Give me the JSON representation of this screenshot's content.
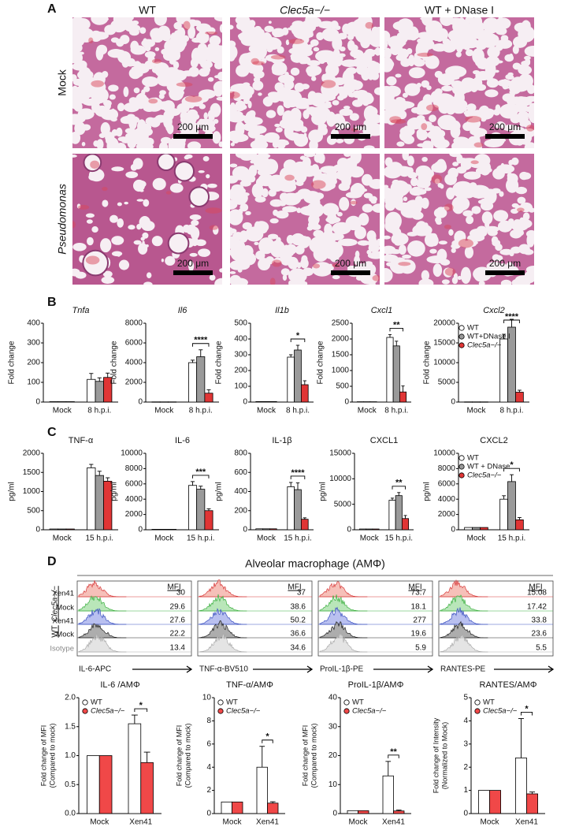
{
  "panel_labels": [
    "A",
    "B",
    "C",
    "D"
  ],
  "panel_a": {
    "columns": [
      "WT",
      "Clec5a−/−",
      "WT + DNase I"
    ],
    "rows": [
      "Mock",
      "Pseudomonas"
    ],
    "scale_bar": "200 μm"
  },
  "flow": {
    "title": "Alveolar macrophage (AMΦ)",
    "groups": [
      "Clec5a−/−",
      "WT"
    ],
    "row_labels": [
      "Xen41",
      "Mock",
      "Xen41",
      "Mock",
      "Isotype"
    ],
    "header": "MFI",
    "panels": [
      {
        "xlabel": "IL-6-APC",
        "mfi": [
          "30",
          "29.6",
          "27.6",
          "22.2",
          "13.4"
        ]
      },
      {
        "xlabel": "TNF-α-BV510",
        "mfi": [
          "37",
          "38.6",
          "50.2",
          "36.6",
          "34.6"
        ]
      },
      {
        "xlabel": "ProIL-1β-PE",
        "mfi": [
          "73.7",
          "18.1",
          "277",
          "19.6",
          "5.9"
        ]
      },
      {
        "xlabel": "RANTES-PE",
        "mfi": [
          "15.08",
          "17.42",
          "33.8",
          "23.6",
          "5.5"
        ]
      }
    ]
  },
  "chart_data": [
    {
      "type": "bar",
      "title": "Tnfa",
      "ylabel": [
        "Fold change"
      ],
      "categories": [
        "Mock",
        "8 h.p.i."
      ],
      "ylim": [
        0,
        400
      ],
      "yticks": [
        0,
        100,
        200,
        300,
        400
      ],
      "series": [
        {
          "color": "#ffffff",
          "values": [
            2,
            115
          ],
          "errors": [
            null,
            30
          ]
        },
        {
          "color": "#9a9a9a",
          "values": [
            2,
            105
          ],
          "errors": [
            null,
            18
          ]
        },
        {
          "color": "#e03535",
          "values": [
            2,
            125
          ],
          "errors": [
            null,
            22
          ]
        }
      ]
    },
    {
      "type": "bar",
      "title": "Il6",
      "ylabel": [
        "Fold change"
      ],
      "categories": [
        "Mock",
        "8 h.p.i."
      ],
      "ylim": [
        0,
        8000
      ],
      "yticks": [
        0,
        2000,
        4000,
        6000,
        8000
      ],
      "annotation": "****",
      "series": [
        {
          "color": "#ffffff",
          "values": [
            20,
            4000
          ],
          "errors": [
            null,
            250
          ]
        },
        {
          "color": "#9a9a9a",
          "values": [
            20,
            4600
          ],
          "errors": [
            null,
            700
          ]
        },
        {
          "color": "#e03535",
          "values": [
            20,
            900
          ],
          "errors": [
            null,
            350
          ]
        }
      ]
    },
    {
      "type": "bar",
      "title": "Il1b",
      "ylabel": [
        "Fold change"
      ],
      "categories": [
        "Mock",
        "8 h.p.i."
      ],
      "ylim": [
        0,
        500
      ],
      "yticks": [
        0,
        100,
        200,
        300,
        400,
        500
      ],
      "annotation": "*",
      "series": [
        {
          "color": "#ffffff",
          "values": [
            3,
            285
          ],
          "errors": [
            null,
            15
          ]
        },
        {
          "color": "#9a9a9a",
          "values": [
            3,
            330
          ],
          "errors": [
            null,
            30
          ]
        },
        {
          "color": "#e03535",
          "values": [
            3,
            110
          ],
          "errors": [
            null,
            25
          ]
        }
      ]
    },
    {
      "type": "bar",
      "title": "Cxcl1",
      "ylabel": [
        "Fold change"
      ],
      "categories": [
        "Mock",
        "8 h.p.i."
      ],
      "ylim": [
        0,
        2500
      ],
      "yticks": [
        0,
        500,
        1000,
        1500,
        2000,
        2500
      ],
      "annotation": "**",
      "series": [
        {
          "color": "#ffffff",
          "values": [
            10,
            2050
          ],
          "errors": [
            null,
            90
          ]
        },
        {
          "color": "#9a9a9a",
          "values": [
            10,
            1780
          ],
          "errors": [
            null,
            150
          ]
        },
        {
          "color": "#e03535",
          "values": [
            10,
            320
          ],
          "errors": [
            null,
            190
          ]
        }
      ]
    },
    {
      "type": "bar",
      "title": "Cxcl2",
      "ylabel": [
        "Fold change"
      ],
      "categories": [
        "Mock",
        "8 h.p.i."
      ],
      "ylim": [
        0,
        20000
      ],
      "yticks": [
        0,
        5000,
        10000,
        15000,
        20000
      ],
      "annotation": "****",
      "legend": true,
      "series": [
        {
          "name": "WT",
          "color": "#ffffff",
          "values": [
            50,
            16000
          ],
          "errors": [
            null,
            1200
          ]
        },
        {
          "name": "WT+DNase I",
          "color": "#9a9a9a",
          "values": [
            50,
            19000
          ],
          "errors": [
            null,
            2000
          ]
        },
        {
          "name": "Clec5a−/−",
          "color": "#e03535",
          "values": [
            50,
            2500
          ],
          "errors": [
            null,
            500
          ]
        }
      ]
    },
    {
      "type": "bar",
      "title": "TNF-α",
      "ylabel": [
        "pg/ml"
      ],
      "categories": [
        "Mock",
        "15 h.p.i."
      ],
      "ylim": [
        0,
        2000
      ],
      "yticks": [
        0,
        500,
        1000,
        1500,
        2000
      ],
      "series": [
        {
          "color": "#ffffff",
          "values": [
            20,
            1620
          ],
          "errors": [
            null,
            90
          ]
        },
        {
          "color": "#9a9a9a",
          "values": [
            20,
            1420
          ],
          "errors": [
            null,
            110
          ]
        },
        {
          "color": "#e03535",
          "values": [
            20,
            1270
          ],
          "errors": [
            null,
            90
          ]
        }
      ]
    },
    {
      "type": "bar",
      "title": "IL-6",
      "ylabel": [
        "pg/ml"
      ],
      "categories": [
        "Mock",
        "15 h.p.i."
      ],
      "ylim": [
        0,
        10000
      ],
      "yticks": [
        0,
        2000,
        4000,
        6000,
        8000,
        10000
      ],
      "annotation": "***",
      "series": [
        {
          "color": "#ffffff",
          "values": [
            60,
            5800
          ],
          "errors": [
            null,
            500
          ]
        },
        {
          "color": "#9a9a9a",
          "values": [
            60,
            5300
          ],
          "errors": [
            null,
            400
          ]
        },
        {
          "color": "#e03535",
          "values": [
            60,
            2500
          ],
          "errors": [
            null,
            250
          ]
        }
      ]
    },
    {
      "type": "bar",
      "title": "IL-1β",
      "ylabel": [
        "pg/ml"
      ],
      "categories": [
        "Mock",
        "15 h.p.i."
      ],
      "ylim": [
        0,
        800
      ],
      "yticks": [
        0,
        200,
        400,
        600,
        800
      ],
      "annotation": "****",
      "series": [
        {
          "color": "#ffffff",
          "values": [
            10,
            450
          ],
          "errors": [
            null,
            45
          ]
        },
        {
          "color": "#9a9a9a",
          "values": [
            10,
            420
          ],
          "errors": [
            null,
            70
          ]
        },
        {
          "color": "#e03535",
          "values": [
            10,
            110
          ],
          "errors": [
            null,
            15
          ]
        }
      ]
    },
    {
      "type": "bar",
      "title": "CXCL1",
      "ylabel": [
        "pg/ml"
      ],
      "categories": [
        "Mock",
        "15 h.p.i."
      ],
      "ylim": [
        0,
        15000
      ],
      "yticks": [
        0,
        5000,
        10000,
        15000
      ],
      "annotation": "**",
      "series": [
        {
          "color": "#ffffff",
          "values": [
            150,
            5800
          ],
          "errors": [
            null,
            400
          ]
        },
        {
          "color": "#9a9a9a",
          "values": [
            150,
            6700
          ],
          "errors": [
            null,
            600
          ]
        },
        {
          "color": "#e03535",
          "values": [
            150,
            2200
          ],
          "errors": [
            null,
            600
          ]
        }
      ]
    },
    {
      "type": "bar",
      "title": "CXCL2",
      "ylabel": [
        "pg/ml"
      ],
      "categories": [
        "Mock",
        "15 h.p.i."
      ],
      "ylim": [
        0,
        10000
      ],
      "yticks": [
        0,
        2000,
        4000,
        6000,
        8000,
        10000
      ],
      "annotation": "*",
      "legend": true,
      "series": [
        {
          "name": "WT",
          "color": "#ffffff",
          "values": [
            300,
            4000
          ],
          "errors": [
            null,
            450
          ]
        },
        {
          "name": "WT + DNase",
          "color": "#9a9a9a",
          "values": [
            300,
            6300
          ],
          "errors": [
            null,
            900
          ]
        },
        {
          "name": "Clec5a−/−",
          "color": "#e03535",
          "values": [
            300,
            1300
          ],
          "errors": [
            null,
            300
          ]
        }
      ]
    },
    {
      "type": "bar",
      "title": "IL-6 /AMΦ",
      "ylabel": [
        "Fold change of MFI",
        "(Compared to mock)"
      ],
      "categories": [
        "Mock",
        "Xen41"
      ],
      "ylim": [
        0,
        2
      ],
      "yticks": [
        {
          "value": 0,
          "label": "0.0"
        },
        {
          "value": 0.5,
          "label": "0.5"
        },
        {
          "value": 1,
          "label": "1.0"
        },
        {
          "value": 1.5,
          "label": "1.5"
        },
        {
          "value": 2,
          "label": "2.0"
        }
      ],
      "annotation": "*",
      "legend": true,
      "series": [
        {
          "name": "WT",
          "color": "#ffffff",
          "values": [
            1,
            1.55
          ],
          "errors": [
            null,
            0.15
          ]
        },
        {
          "name": "Clec5a−/−",
          "color": "#f04848",
          "values": [
            1,
            0.88
          ],
          "errors": [
            null,
            0.18
          ]
        }
      ]
    },
    {
      "type": "bar",
      "title": "TNF-α/AMΦ",
      "ylabel": [
        "Fold change of MFI",
        "(Compared to mock)"
      ],
      "categories": [
        "Mock",
        "Xen41"
      ],
      "ylim": [
        0,
        10
      ],
      "yticks": [
        0,
        2,
        4,
        6,
        8,
        10
      ],
      "annotation": "*",
      "legend": true,
      "series": [
        {
          "name": "WT",
          "color": "#ffffff",
          "values": [
            1,
            4
          ],
          "errors": [
            null,
            1.8
          ]
        },
        {
          "name": "Clec5a−/−",
          "color": "#f04848",
          "values": [
            1,
            0.9
          ],
          "errors": [
            null,
            0.12
          ]
        }
      ]
    },
    {
      "type": "bar",
      "title": "ProIL-1β/AMΦ",
      "ylabel": [
        "Fold change of MFI",
        "(Compared to mock)"
      ],
      "categories": [
        "Mock",
        "Xen41"
      ],
      "ylim": [
        0,
        40
      ],
      "yticks": [
        0,
        10,
        20,
        30,
        40
      ],
      "annotation": "**",
      "legend": true,
      "series": [
        {
          "name": "WT",
          "color": "#ffffff",
          "values": [
            1,
            13
          ],
          "errors": [
            null,
            5
          ]
        },
        {
          "name": "Clec5a−/−",
          "color": "#f04848",
          "values": [
            1,
            0.9
          ],
          "errors": [
            null,
            0.3
          ]
        }
      ]
    },
    {
      "type": "bar",
      "title": "RANTES/AMΦ",
      "ylabel": [
        "Fold change of Intensity",
        "(Normalized to Mock)"
      ],
      "categories": [
        "Mock",
        "Xen41"
      ],
      "ylim": [
        0,
        5
      ],
      "yticks": [
        0,
        1,
        2,
        3,
        4,
        5
      ],
      "annotation": "*",
      "legend": true,
      "series": [
        {
          "name": "WT",
          "color": "#ffffff",
          "values": [
            1,
            2.4
          ],
          "errors": [
            null,
            1.7
          ]
        },
        {
          "name": "Clec5a−/−",
          "color": "#f04848",
          "values": [
            1,
            0.85
          ],
          "errors": [
            null,
            0.08
          ]
        }
      ]
    }
  ]
}
